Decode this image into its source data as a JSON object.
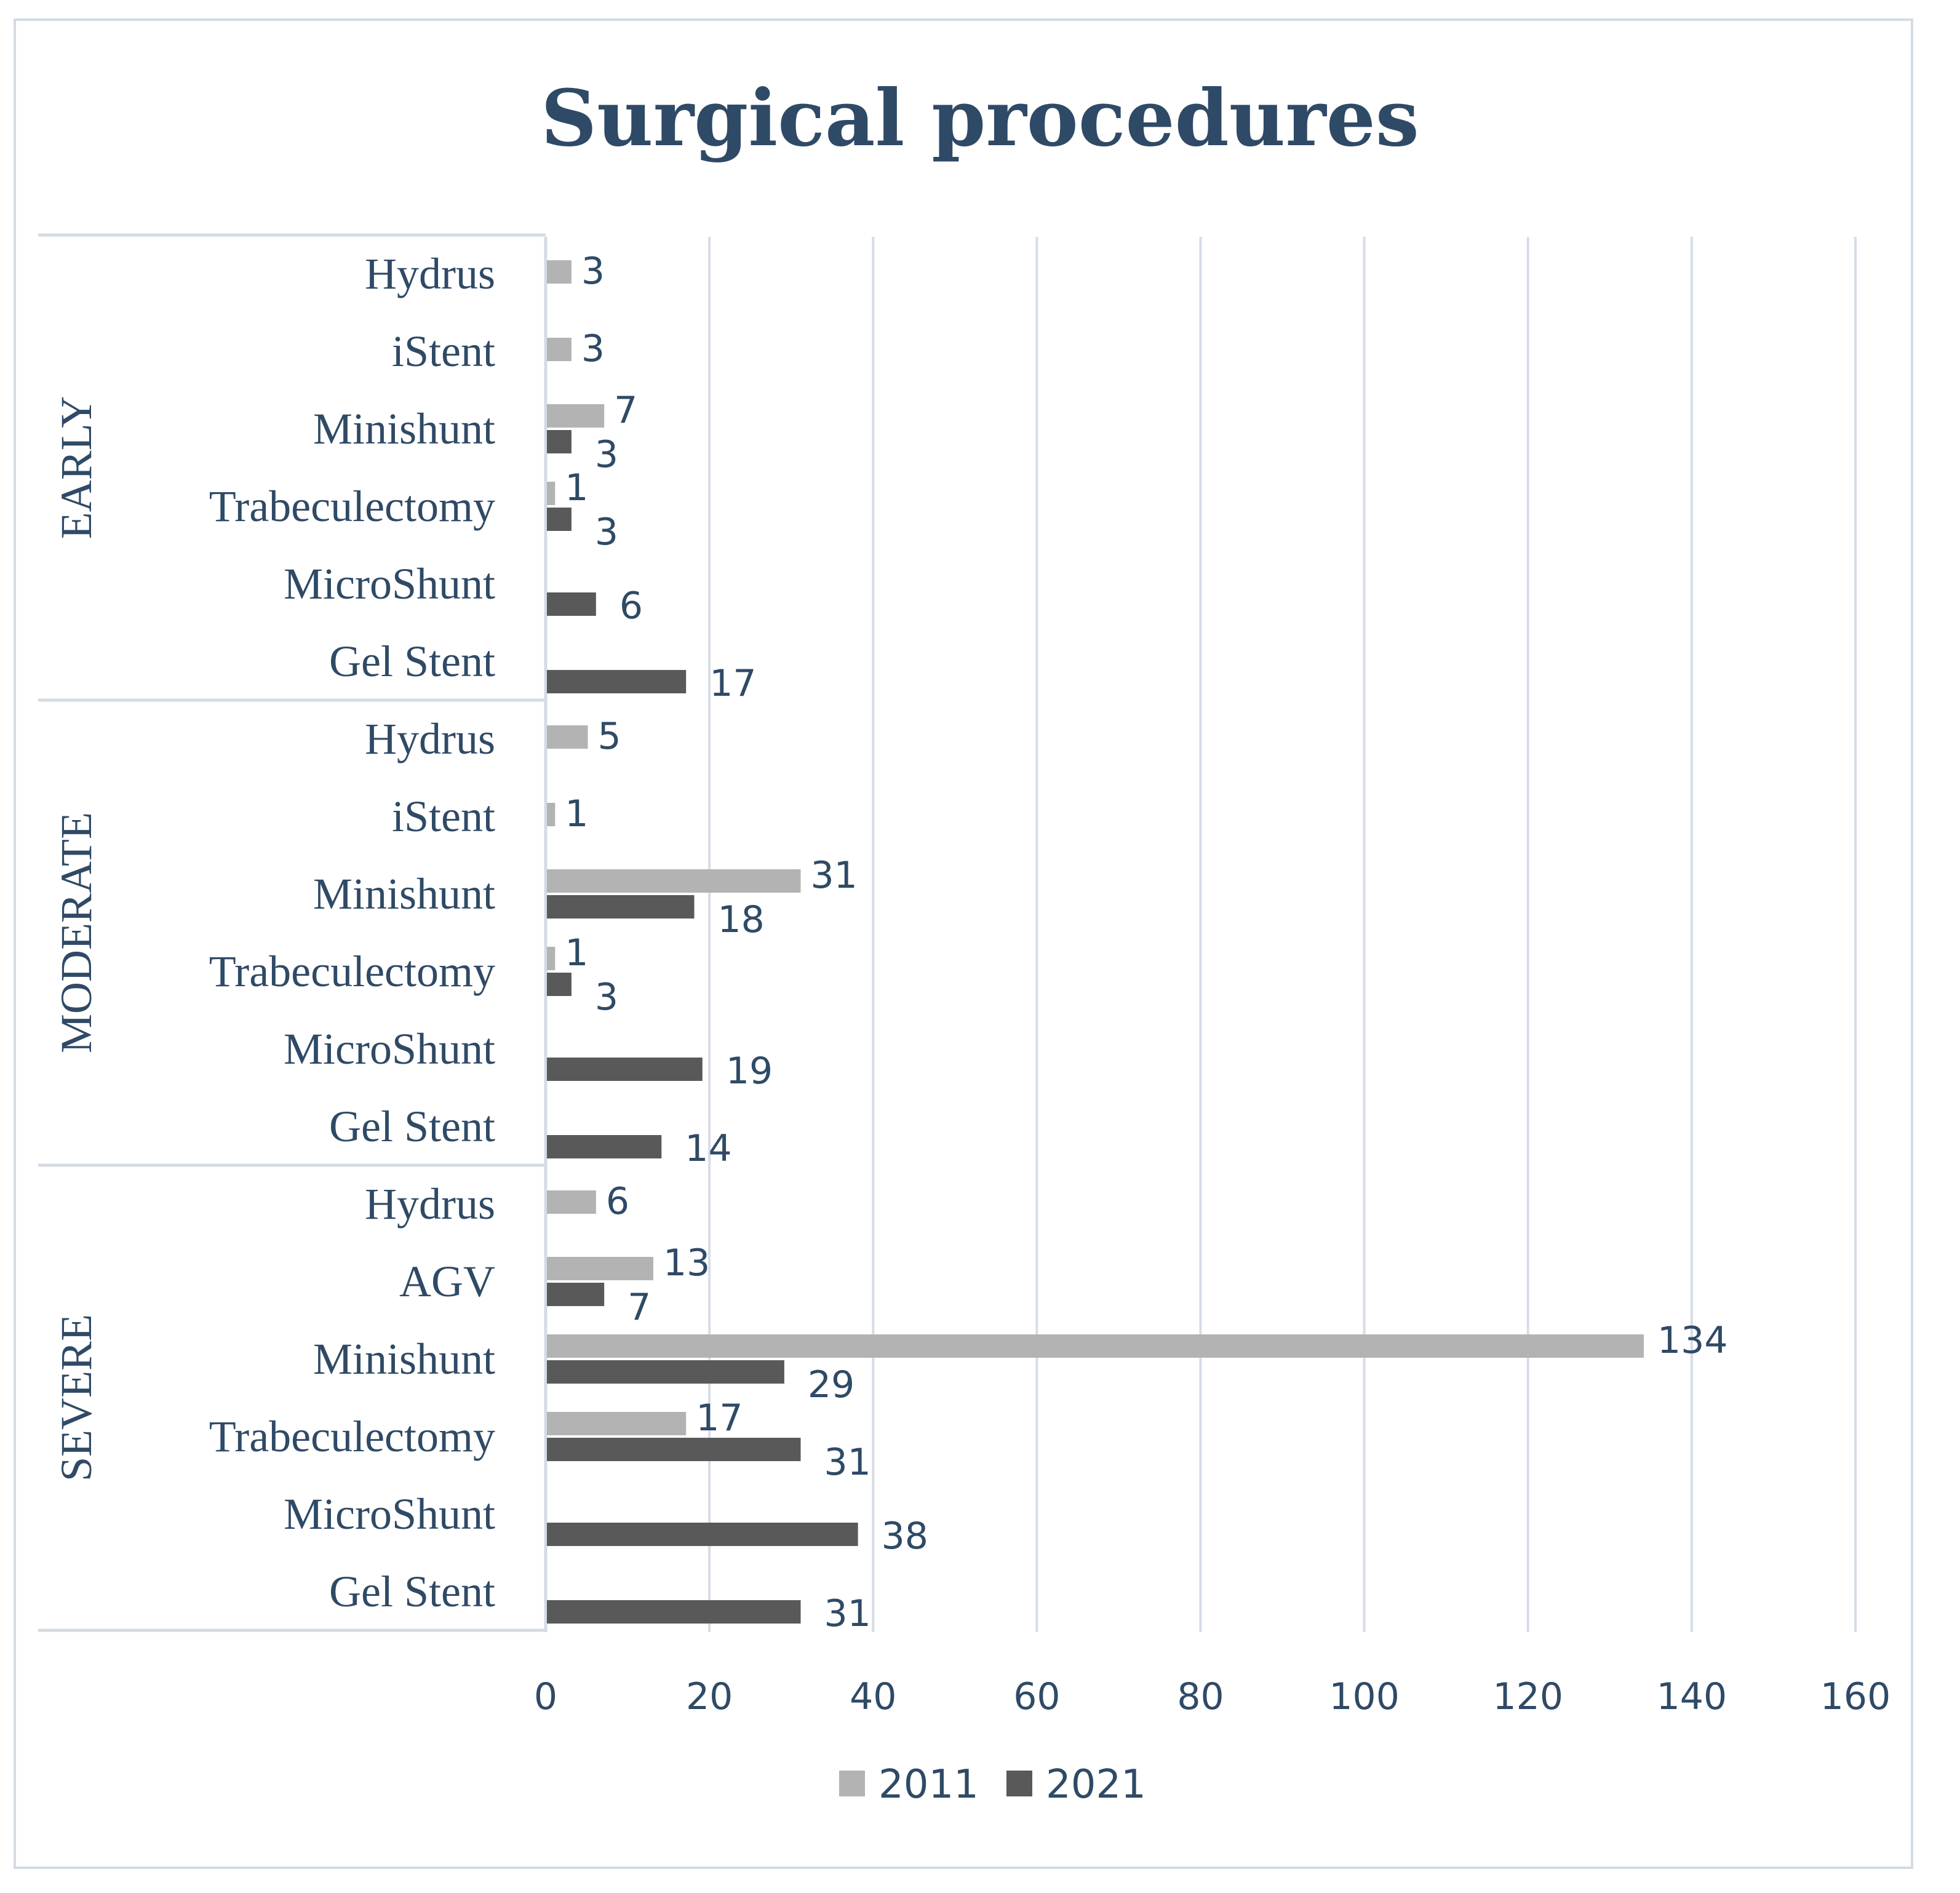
{
  "chart_data": {
    "type": "bar",
    "orientation": "horizontal",
    "title": "Surgical procedures",
    "xlabel": "",
    "ylabel": "",
    "xlim": [
      0,
      160
    ],
    "xticks": [
      0,
      20,
      40,
      60,
      80,
      100,
      120,
      140,
      160
    ],
    "grid": "vertical",
    "legend_position": "bottom",
    "series": [
      {
        "name": "2011",
        "color": "#b3b3b3"
      },
      {
        "name": "2021",
        "color": "#595959"
      }
    ],
    "groups": [
      {
        "label": "EARLY",
        "categories": [
          {
            "label": "Hydrus",
            "values": [
              3,
              null
            ]
          },
          {
            "label": "iStent",
            "values": [
              3,
              null
            ]
          },
          {
            "label": "Minishunt",
            "values": [
              7,
              3
            ]
          },
          {
            "label": "Trabeculectomy",
            "values": [
              1,
              3
            ]
          },
          {
            "label": "MicroShunt",
            "values": [
              null,
              6
            ]
          },
          {
            "label": "Gel Stent",
            "values": [
              null,
              17
            ]
          }
        ]
      },
      {
        "label": "MODERATE",
        "categories": [
          {
            "label": "Hydrus",
            "values": [
              5,
              null
            ]
          },
          {
            "label": "iStent",
            "values": [
              1,
              null
            ]
          },
          {
            "label": "Minishunt",
            "values": [
              31,
              18
            ]
          },
          {
            "label": "Trabeculectomy",
            "values": [
              1,
              3
            ]
          },
          {
            "label": "MicroShunt",
            "values": [
              null,
              19
            ]
          },
          {
            "label": "Gel Stent",
            "values": [
              null,
              14
            ]
          }
        ]
      },
      {
        "label": "SEVERE",
        "categories": [
          {
            "label": "Hydrus",
            "values": [
              6,
              null
            ]
          },
          {
            "label": "AGV",
            "values": [
              13,
              7
            ]
          },
          {
            "label": "Minishunt",
            "values": [
              134,
              29
            ]
          },
          {
            "label": "Trabeculectomy",
            "values": [
              17,
              31
            ]
          },
          {
            "label": "MicroShunt",
            "values": [
              null,
              38
            ]
          },
          {
            "label": "Gel Stent",
            "values": [
              null,
              31
            ]
          }
        ]
      }
    ]
  }
}
